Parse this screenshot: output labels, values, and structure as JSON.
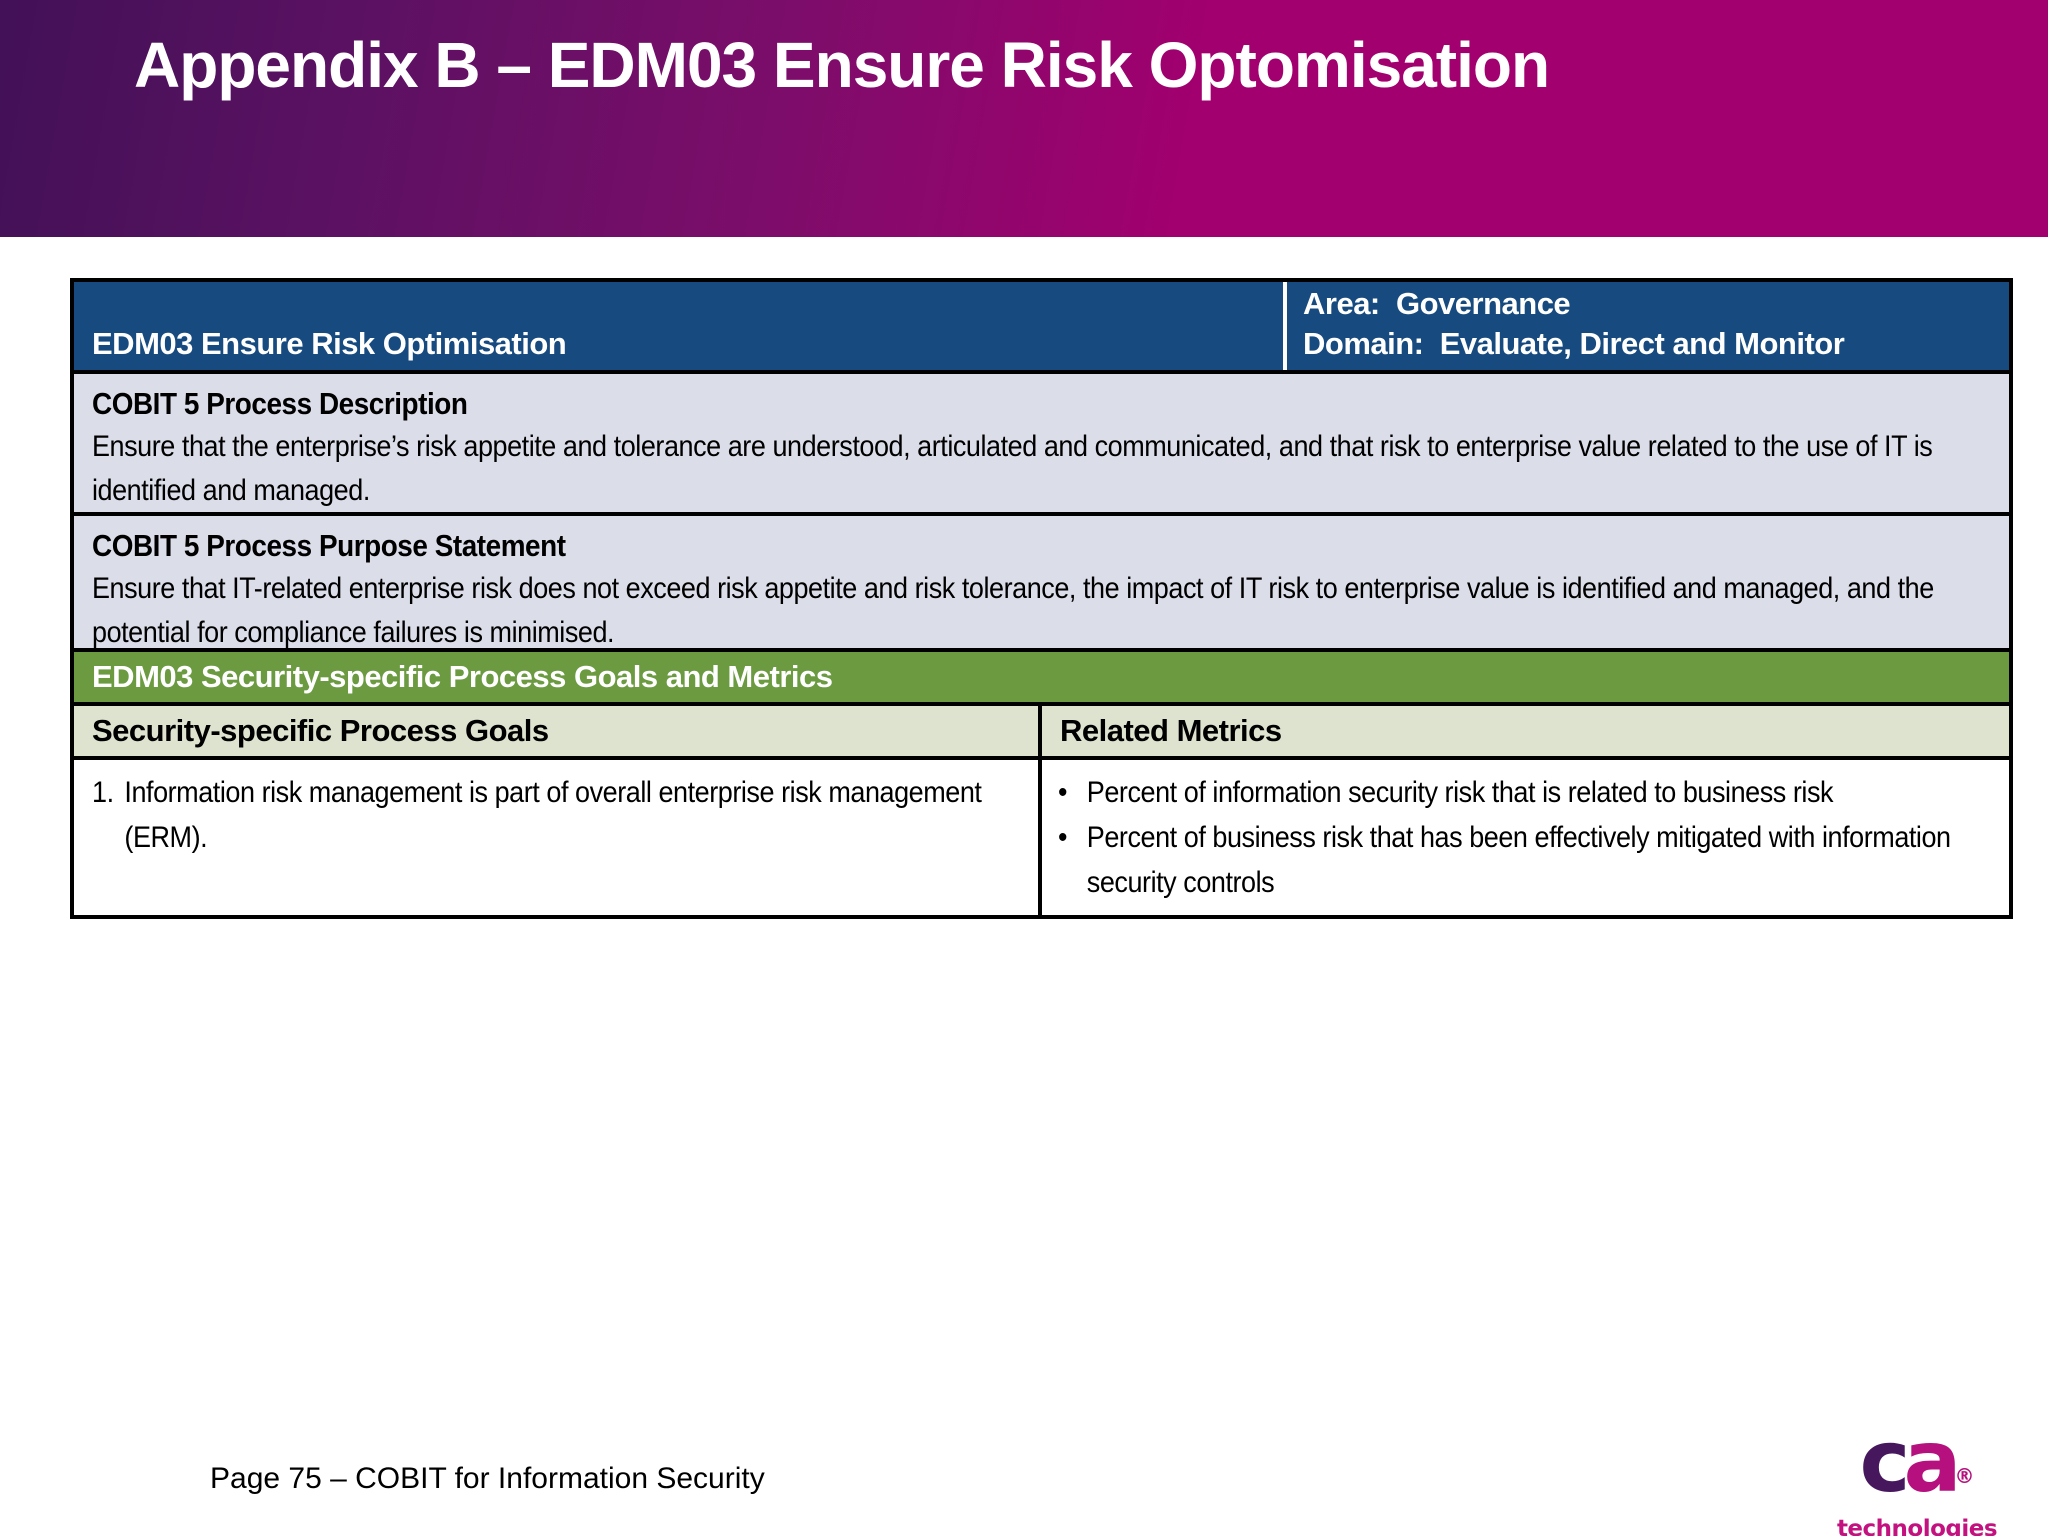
{
  "slide": {
    "title": "Appendix B – EDM03 Ensure Risk Optomisation",
    "footer": "Page 75 – COBIT for Information Security"
  },
  "table": {
    "header": {
      "process_title": "EDM03 Ensure Risk Optimisation",
      "area_line": "Area:  Governance",
      "domain_line": "Domain:  Evaluate, Direct and Monitor"
    },
    "description": {
      "heading": "COBIT 5 Process Description",
      "body": "Ensure that the enterprise’s risk appetite and tolerance are understood, articulated and communicated, and that risk to enterprise value related to the use of IT is identified and managed."
    },
    "purpose": {
      "heading": "COBIT 5 Process Purpose Statement",
      "body": "Ensure that IT-related enterprise risk does not exceed risk appetite and risk tolerance, the impact of IT risk to enterprise value is identified and managed, and the potential for compliance failures is minimised."
    },
    "goals_section": {
      "banner": "EDM03 Security-specific Process Goals and Metrics",
      "col1_header": "Security-specific Process Goals",
      "col2_header": "Related Metrics",
      "goals": [
        {
          "number": "1.",
          "text": "Information risk management is part of overall enterprise risk management (ERM)."
        }
      ],
      "metrics": [
        "Percent of information security risk that is related to business risk",
        "Percent of business risk that has been effectively mitigated with information security controls"
      ]
    }
  },
  "logo": {
    "letter_c": "c",
    "letter_a": "a",
    "registered": "®",
    "wordmark": "technologies"
  },
  "colors": {
    "banner_gradient_left": "#421157",
    "banner_gradient_right": "#a1006e",
    "table_header_blue": "#174a7f",
    "row_lavender": "#dbdde9",
    "section_green": "#6b9a41",
    "subheader_light_green": "#dde3cf",
    "logo_purple": "#47175e",
    "logo_magenta": "#b5107e"
  }
}
